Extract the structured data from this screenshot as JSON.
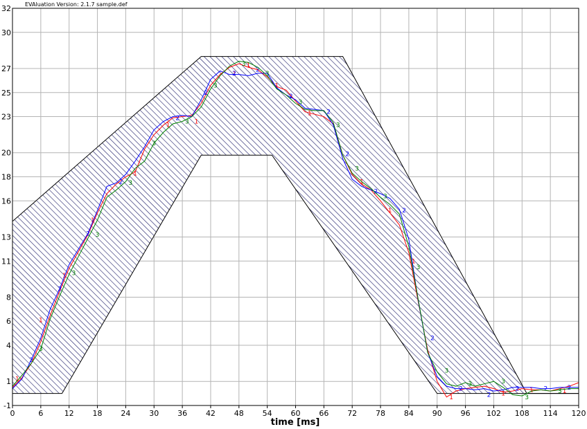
{
  "header": {
    "text": "EVAluation Version: 2.1.7 sample.def"
  },
  "chart_data": {
    "type": "line",
    "title": "",
    "xlabel": "time [ms]",
    "ylabel": "",
    "xlim": [
      0,
      120
    ],
    "ylim": [
      -1,
      32
    ],
    "grid": true,
    "x_ticks": [
      0,
      6,
      12,
      18,
      24,
      30,
      36,
      42,
      48,
      54,
      60,
      66,
      72,
      78,
      84,
      90,
      96,
      102,
      108,
      114,
      120
    ],
    "y_ticks": [
      -1,
      1,
      4,
      6,
      8,
      11,
      13,
      16,
      18,
      20,
      23,
      25,
      27,
      30,
      32
    ],
    "y_tick_labels": [
      "-1",
      "1",
      "4",
      "6",
      "8",
      "11",
      "13",
      "16",
      "18",
      "20",
      "23",
      "25",
      "27",
      "30",
      "32"
    ],
    "tolerance_band": {
      "upper": [
        [
          0,
          14.3
        ],
        [
          40,
          28.0
        ],
        [
          70,
          28.0
        ],
        [
          109,
          0.0
        ],
        [
          120,
          0.0
        ]
      ],
      "lower": [
        [
          0,
          0.0
        ],
        [
          10.5,
          0.0
        ],
        [
          40,
          19.8
        ],
        [
          55,
          19.8
        ],
        [
          90,
          0.0
        ],
        [
          120,
          0.0
        ]
      ],
      "fill": "hatched"
    },
    "series": [
      {
        "name": "1",
        "color": "#ff0000",
        "x": [
          0,
          2,
          4,
          6,
          8,
          10,
          12,
          14,
          16,
          18,
          20,
          22,
          24,
          26,
          28,
          30,
          32,
          34,
          36,
          38,
          40,
          42,
          44,
          46,
          48,
          50,
          52,
          54,
          56,
          58,
          60,
          62,
          64,
          66,
          68,
          70,
          72,
          74,
          76,
          78,
          80,
          82,
          84,
          86,
          88,
          90,
          92,
          94,
          96,
          98,
          100,
          102,
          104,
          106,
          108,
          110,
          112,
          114,
          116,
          118,
          120
        ],
        "y": [
          0.5,
          1.3,
          2.5,
          4.3,
          6.5,
          8.5,
          10.4,
          11.8,
          13.2,
          15.0,
          16.6,
          17.4,
          18.0,
          18.4,
          20.3,
          21.5,
          22.3,
          22.9,
          23.0,
          23.1,
          24.1,
          25.6,
          26.5,
          27.1,
          27.4,
          27.1,
          26.9,
          26.3,
          25.5,
          25.2,
          24.3,
          23.4,
          23.2,
          23.0,
          22.4,
          19.8,
          18.2,
          17.4,
          16.9,
          16.0,
          15.0,
          14.0,
          11.7,
          7.6,
          3.6,
          1.0,
          -0.3,
          0.2,
          0.4,
          0.5,
          0.6,
          0.4,
          0.1,
          0.2,
          0.4,
          0.3,
          0.3,
          0.2,
          0.4,
          0.6,
          0.9
        ],
        "markers": [
          [
            1,
            1.2
          ],
          [
            6,
            6.1
          ],
          [
            11,
            9.8
          ],
          [
            17,
            14.4
          ],
          [
            26,
            18.3
          ],
          [
            33,
            22.3
          ],
          [
            39,
            22.6
          ],
          [
            47,
            26.6
          ],
          [
            50,
            27.3
          ],
          [
            56,
            25.6
          ],
          [
            63,
            23.3
          ],
          [
            74,
            17.6
          ],
          [
            80,
            15.2
          ],
          [
            85,
            11.0
          ],
          [
            93,
            -0.3
          ],
          [
            104,
            0.0
          ],
          [
            110,
            0.3
          ],
          [
            117,
            0.2
          ]
        ]
      },
      {
        "name": "2",
        "color": "#0000ff",
        "x": [
          0,
          2,
          4,
          6,
          8,
          10,
          12,
          14,
          16,
          18,
          20,
          22,
          24,
          26,
          28,
          30,
          32,
          34,
          36,
          38,
          40,
          42,
          44,
          46,
          48,
          50,
          52,
          54,
          56,
          58,
          60,
          62,
          64,
          66,
          68,
          70,
          72,
          74,
          76,
          78,
          80,
          82,
          84,
          86,
          88,
          90,
          92,
          94,
          96,
          98,
          100,
          102,
          104,
          106,
          108,
          110,
          112,
          114,
          116,
          118,
          120
        ],
        "y": [
          0.4,
          1.2,
          2.8,
          4.6,
          7.0,
          8.7,
          10.7,
          12.0,
          13.3,
          15.2,
          17.2,
          17.5,
          18.2,
          19.3,
          20.5,
          21.9,
          22.6,
          23.0,
          23.1,
          23.0,
          24.4,
          26.1,
          26.8,
          26.5,
          26.5,
          26.4,
          26.6,
          26.6,
          25.4,
          24.8,
          24.4,
          23.7,
          23.6,
          23.5,
          22.3,
          19.5,
          17.8,
          17.2,
          16.9,
          16.6,
          16.2,
          15.3,
          12.8,
          7.7,
          3.4,
          1.4,
          0.6,
          0.4,
          0.4,
          0.3,
          0.4,
          0.2,
          0.3,
          0.5,
          0.5,
          0.5,
          0.4,
          0.4,
          0.5,
          0.5,
          0.5
        ],
        "markers": [
          [
            4,
            2.8
          ],
          [
            10,
            8.7
          ],
          [
            16,
            13.3
          ],
          [
            23,
            17.6
          ],
          [
            35,
            22.9
          ],
          [
            41,
            25.0
          ],
          [
            47,
            26.6
          ],
          [
            52,
            26.9
          ],
          [
            59,
            24.7
          ],
          [
            67,
            23.4
          ],
          [
            71,
            19.9
          ],
          [
            77,
            16.8
          ],
          [
            83,
            15.2
          ],
          [
            89,
            4.6
          ],
          [
            95,
            0.4
          ],
          [
            101,
            -0.1
          ],
          [
            107,
            0.4
          ],
          [
            113,
            0.4
          ],
          [
            118,
            0.5
          ]
        ]
      },
      {
        "name": "3",
        "color": "#008000",
        "x": [
          0,
          2,
          4,
          6,
          8,
          10,
          12,
          14,
          16,
          18,
          20,
          22,
          24,
          26,
          28,
          30,
          32,
          34,
          36,
          38,
          40,
          42,
          44,
          46,
          48,
          50,
          52,
          54,
          56,
          58,
          60,
          62,
          64,
          66,
          68,
          70,
          72,
          74,
          76,
          78,
          80,
          82,
          84,
          86,
          88,
          90,
          92,
          94,
          96,
          98,
          100,
          102,
          104,
          106,
          108,
          110,
          112,
          114,
          116,
          118,
          120
        ],
        "y": [
          0.6,
          1.5,
          2.5,
          3.7,
          6.2,
          8.1,
          9.9,
          11.4,
          12.9,
          14.4,
          16.3,
          16.9,
          17.6,
          18.7,
          19.3,
          20.8,
          21.7,
          22.4,
          22.6,
          23.0,
          23.8,
          25.3,
          26.4,
          27.2,
          27.6,
          27.5,
          27.1,
          26.4,
          25.3,
          24.8,
          24.1,
          23.6,
          23.5,
          23.5,
          22.5,
          19.8,
          18.3,
          17.6,
          17.0,
          16.3,
          15.7,
          14.9,
          12.2,
          7.8,
          3.4,
          1.8,
          0.8,
          0.6,
          0.9,
          0.6,
          0.8,
          1.0,
          0.5,
          -0.1,
          -0.2,
          0.2,
          0.3,
          0.2,
          0.3,
          0.4,
          0.4
        ],
        "markers": [
          [
            6,
            3.7
          ],
          [
            13,
            10.0
          ],
          [
            18,
            13.2
          ],
          [
            25,
            17.5
          ],
          [
            30,
            20.8
          ],
          [
            37,
            22.6
          ],
          [
            43,
            25.6
          ],
          [
            49,
            27.4
          ],
          [
            54,
            26.6
          ],
          [
            61,
            24.2
          ],
          [
            69,
            22.3
          ],
          [
            73,
            18.7
          ],
          [
            79,
            16.4
          ],
          [
            86,
            10.5
          ],
          [
            92,
            1.9
          ],
          [
            97,
            0.8
          ],
          [
            104,
            1.0
          ],
          [
            109,
            -0.3
          ],
          [
            116,
            0.2
          ]
        ]
      }
    ]
  }
}
